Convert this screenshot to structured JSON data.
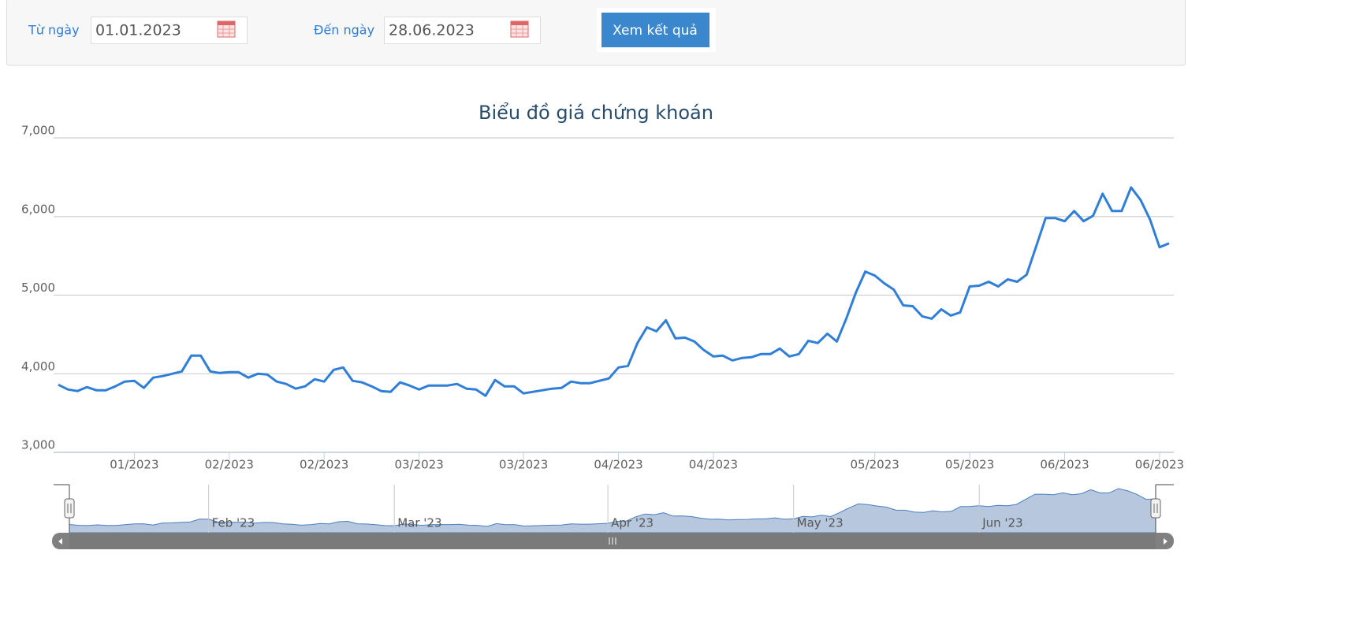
{
  "form": {
    "from_label": "Từ ngày",
    "from_value": "01.01.2023",
    "to_label": "Đến ngày",
    "to_value": "28.06.2023",
    "button": "Xem kết quả"
  },
  "chart_data": {
    "type": "line",
    "title": "Biểu đồ giá chứng khoán",
    "color": "#2f7ed8",
    "categories": [
      null,
      null,
      null,
      null,
      null,
      null,
      null,
      null,
      "01/2023",
      null,
      null,
      null,
      null,
      null,
      null,
      null,
      null,
      null,
      "02/2023",
      null,
      null,
      null,
      null,
      null,
      null,
      null,
      null,
      null,
      "02/2023",
      null,
      null,
      null,
      null,
      null,
      null,
      null,
      null,
      null,
      "03/2023",
      null,
      null,
      null,
      null,
      null,
      null,
      null,
      null,
      null,
      null,
      "03/2023",
      null,
      null,
      null,
      null,
      null,
      null,
      null,
      null,
      null,
      "04/2023",
      null,
      null,
      null,
      null,
      null,
      null,
      null,
      null,
      null,
      "04/2023",
      null,
      null,
      null,
      null,
      null,
      null,
      null,
      null,
      null,
      null,
      null,
      null,
      null,
      null,
      null,
      null,
      "05/2023",
      null,
      null,
      null,
      null,
      null,
      null,
      null,
      null,
      null,
      "05/2023",
      null,
      null,
      null,
      null,
      null,
      null,
      null,
      null,
      null,
      "06/2023",
      null,
      null,
      null,
      null,
      null,
      null,
      null,
      null,
      null,
      "06/2023",
      null
    ],
    "values": [
      3860,
      3800,
      3780,
      3830,
      3790,
      3790,
      3840,
      3900,
      3910,
      3820,
      3950,
      3970,
      4000,
      4030,
      4230,
      4230,
      4030,
      4010,
      4020,
      4020,
      3950,
      4000,
      3990,
      3900,
      3870,
      3810,
      3840,
      3930,
      3900,
      4050,
      4080,
      3910,
      3890,
      3840,
      3780,
      3770,
      3890,
      3850,
      3800,
      3850,
      3850,
      3850,
      3870,
      3810,
      3800,
      3720,
      3920,
      3840,
      3840,
      3750,
      3770,
      3790,
      3810,
      3820,
      3900,
      3880,
      3880,
      3910,
      3940,
      4080,
      4100,
      4390,
      4590,
      4540,
      4680,
      4450,
      4460,
      4410,
      4300,
      4220,
      4230,
      4170,
      4200,
      4210,
      4250,
      4250,
      4320,
      4220,
      4250,
      4420,
      4390,
      4510,
      4410,
      4700,
      5030,
      5300,
      5250,
      5150,
      5070,
      4870,
      4860,
      4730,
      4700,
      4820,
      4740,
      4780,
      5110,
      5120,
      5170,
      5110,
      5200,
      5170,
      5260,
      5620,
      5980,
      5980,
      5940,
      6070,
      5940,
      6010,
      6290,
      6070,
      6070,
      6370,
      6210,
      5960,
      5610,
      5660
    ],
    "ylim": [
      3000,
      7000
    ],
    "yticks": [
      {
        "value": 3000,
        "label": "3,000"
      },
      {
        "value": 4000,
        "label": "4,000"
      },
      {
        "value": 5000,
        "label": "5,000"
      },
      {
        "value": 6000,
        "label": "6,000"
      },
      {
        "value": 7000,
        "label": "7,000"
      }
    ],
    "grid": true,
    "navigator_ticks": [
      {
        "value": 15,
        "label": "Feb '23"
      },
      {
        "value": 35,
        "label": "Mar '23"
      },
      {
        "value": 58,
        "label": "Apr '23"
      },
      {
        "value": 78,
        "label": "May '23"
      },
      {
        "value": 98,
        "label": "Jun '23"
      }
    ]
  }
}
